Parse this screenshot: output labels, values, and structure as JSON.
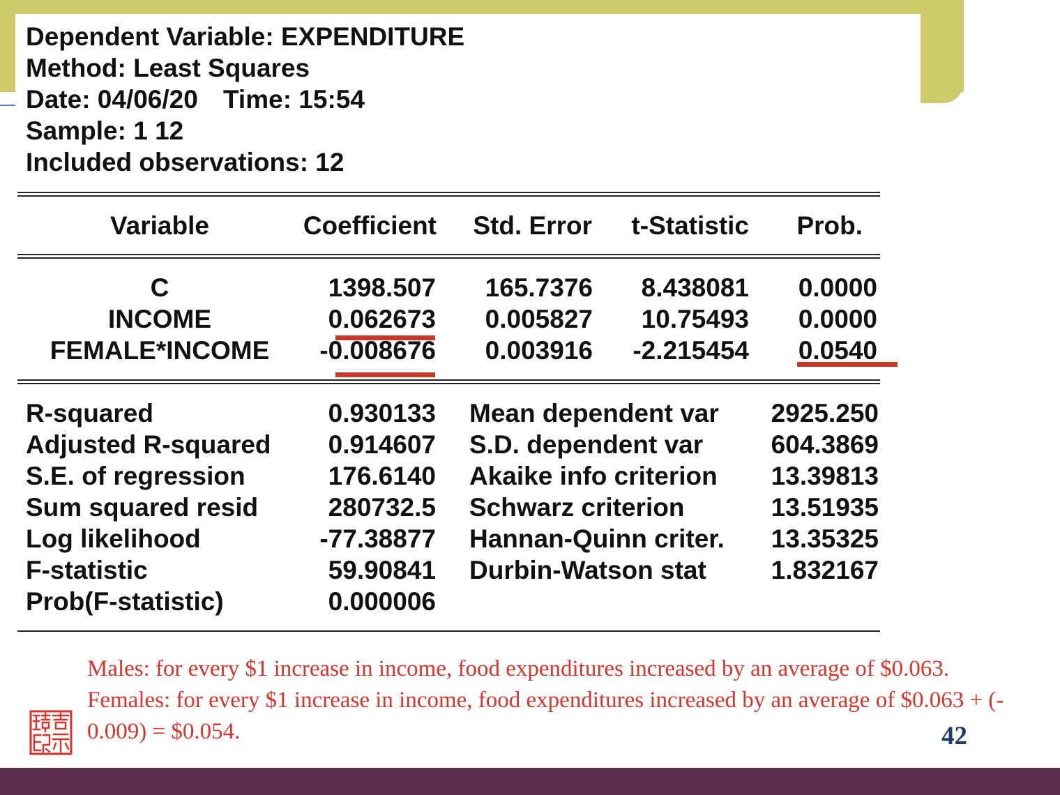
{
  "slide": {
    "page_number": "42",
    "seal_icon": "seal-icon"
  },
  "regression": {
    "dependent_variable": "Dependent Variable: EXPENDITURE",
    "method": "Method: Least Squares",
    "date": "Date: 04/06/20",
    "time": "Time: 15:54",
    "sample": "Sample: 1 12",
    "observations": "Included observations: 12"
  },
  "coefficients": {
    "headers": {
      "variable": "Variable",
      "coefficient": "Coefficient",
      "std_error": "Std. Error",
      "t_statistic": "t-Statistic",
      "prob": "Prob."
    },
    "rows": [
      {
        "variable": "C",
        "coefficient": "1398.507",
        "std_error": "165.7376",
        "t_statistic": "8.438081",
        "prob": "0.0000"
      },
      {
        "variable": "INCOME",
        "coefficient": "0.062673",
        "std_error": "0.005827",
        "t_statistic": "10.75493",
        "prob": "0.0000"
      },
      {
        "variable": "FEMALE*INCOME",
        "coefficient": "-0.008676",
        "std_error": "0.003916",
        "t_statistic": "-2.215454",
        "prob": "0.0540"
      }
    ]
  },
  "statistics": {
    "left": [
      {
        "label": "R-squared",
        "value": "0.930133"
      },
      {
        "label": "Adjusted R-squared",
        "value": "0.914607"
      },
      {
        "label": "S.E. of regression",
        "value": "176.6140"
      },
      {
        "label": "Sum squared resid",
        "value": "280732.5"
      },
      {
        "label": "Log likelihood",
        "value": "-77.38877"
      },
      {
        "label": "F-statistic",
        "value": "59.90841"
      },
      {
        "label": "Prob(F-statistic)",
        "value": "0.000006"
      }
    ],
    "right": [
      {
        "label": "Mean dependent var",
        "value": "2925.250"
      },
      {
        "label": "S.D. dependent var",
        "value": "604.3869"
      },
      {
        "label": "Akaike info criterion",
        "value": "13.39813"
      },
      {
        "label": "Schwarz criterion",
        "value": "13.51935"
      },
      {
        "label": "Hannan-Quinn criter.",
        "value": "13.35325"
      },
      {
        "label": "Durbin-Watson stat",
        "value": "1.832167"
      }
    ]
  },
  "notes": {
    "males": "Males: for every $1 increase in income, food expenditures increased by an average of $0.063.",
    "females_lines": [
      "Females: for every $1 increase in income, food expenditures increased by an average of $0.063 + (-",
      "0.009) = $0.054."
    ]
  },
  "colors": {
    "band": "#CECA6C",
    "footer": "#5B2D4A",
    "highlight": "#C63A2C",
    "note": "#D9342B",
    "page_number": "#1F3A68",
    "ink": "#111111"
  }
}
